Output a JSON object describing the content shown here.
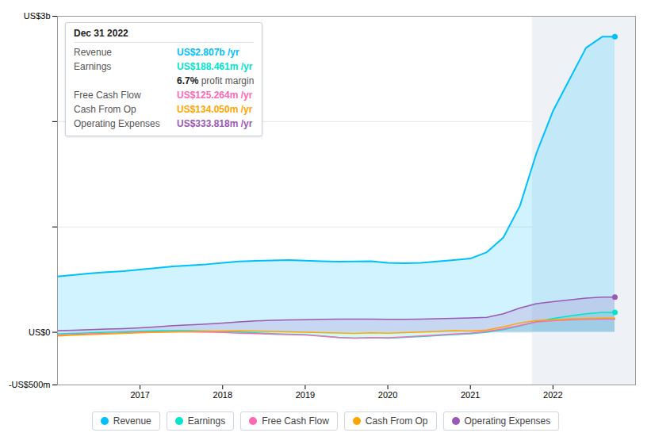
{
  "chart_data": {
    "type": "line",
    "x": [
      2016.0,
      2016.2,
      2016.4,
      2016.6,
      2016.8,
      2017.0,
      2017.2,
      2017.4,
      2017.6,
      2017.8,
      2018.0,
      2018.2,
      2018.4,
      2018.6,
      2018.8,
      2019.0,
      2019.2,
      2019.4,
      2019.6,
      2019.8,
      2020.0,
      2020.2,
      2020.4,
      2020.6,
      2020.8,
      2021.0,
      2021.2,
      2021.4,
      2021.6,
      2021.8,
      2022.0,
      2022.2,
      2022.4,
      2022.6,
      2022.75
    ],
    "series": [
      {
        "name": "Revenue",
        "color": "#00bfff",
        "type": "area",
        "values": [
          530,
          545,
          560,
          570,
          580,
          595,
          610,
          625,
          635,
          645,
          660,
          672,
          678,
          682,
          685,
          680,
          675,
          670,
          672,
          675,
          660,
          655,
          660,
          672,
          685,
          700,
          760,
          900,
          1200,
          1700,
          2100,
          2400,
          2700,
          2807,
          2807
        ]
      },
      {
        "name": "Earnings",
        "color": "#00e5cc",
        "type": "area",
        "values": [
          -15,
          -10,
          -5,
          0,
          5,
          10,
          14,
          16,
          15,
          12,
          8,
          2,
          -5,
          -12,
          -18,
          -22,
          -35,
          -48,
          -55,
          -52,
          -55,
          -48,
          -40,
          -32,
          -22,
          -15,
          0,
          25,
          60,
          100,
          130,
          155,
          175,
          188,
          188
        ]
      },
      {
        "name": "Free Cash Flow",
        "color": "#ff69b4",
        "type": "line",
        "values": [
          -25,
          -20,
          -15,
          -10,
          -5,
          0,
          3,
          5,
          4,
          2,
          -2,
          -8,
          -13,
          -18,
          -22,
          -25,
          -38,
          -50,
          -55,
          -50,
          -52,
          -44,
          -35,
          -26,
          -16,
          -8,
          8,
          32,
          65,
          98,
          110,
          118,
          123,
          125,
          125
        ]
      },
      {
        "name": "Cash From Op",
        "color": "#ffa500",
        "type": "line",
        "values": [
          -35,
          -28,
          -22,
          -16,
          -10,
          -5,
          0,
          5,
          8,
          10,
          12,
          14,
          12,
          8,
          4,
          0,
          -3,
          -7,
          -10,
          -6,
          -8,
          -3,
          2,
          8,
          15,
          12,
          22,
          52,
          88,
          112,
          118,
          126,
          131,
          134,
          134
        ]
      },
      {
        "name": "Operating Expenses",
        "color": "#9b59b6",
        "type": "area",
        "values": [
          15,
          20,
          25,
          30,
          35,
          42,
          52,
          62,
          70,
          78,
          88,
          98,
          108,
          114,
          118,
          120,
          122,
          124,
          125,
          124,
          122,
          122,
          124,
          128,
          132,
          136,
          142,
          175,
          230,
          272,
          290,
          308,
          325,
          334,
          334
        ]
      }
    ],
    "xlim": [
      2016.0,
      2023.0
    ],
    "xticks": [
      2017,
      2018,
      2019,
      2020,
      2021,
      2022
    ],
    "ylim": [
      -500,
      3000
    ],
    "yticks": [
      {
        "value": -500,
        "label": "-US$500m"
      },
      {
        "value": 0,
        "label": "US$0"
      },
      {
        "value": 1000,
        "label": null
      },
      {
        "value": 2000,
        "label": null
      },
      {
        "value": 3000,
        "label": "US$3b"
      }
    ],
    "grid": true,
    "legend": "bottom",
    "highlight": [
      2021.75,
      2023.0
    ],
    "annotations": [
      {
        "title": "Dec 31 2022",
        "rows": [
          {
            "label": "Revenue",
            "value": "US$2.807b /yr",
            "color": "#00bfff"
          },
          {
            "label": "Earnings",
            "value": "US$188.461m /yr",
            "color": "#00e5cc"
          },
          {
            "value": "6.7% profit margin"
          },
          {
            "label": "Free Cash Flow",
            "value": "US$125.264m /yr",
            "color": "#ff69b4"
          },
          {
            "label": "Cash From Op",
            "value": "US$134.050m /yr",
            "color": "#ffa500"
          },
          {
            "label": "Operating Expenses",
            "value": "US$333.818m /yr",
            "color": "#9b59b6"
          }
        ]
      }
    ]
  }
}
